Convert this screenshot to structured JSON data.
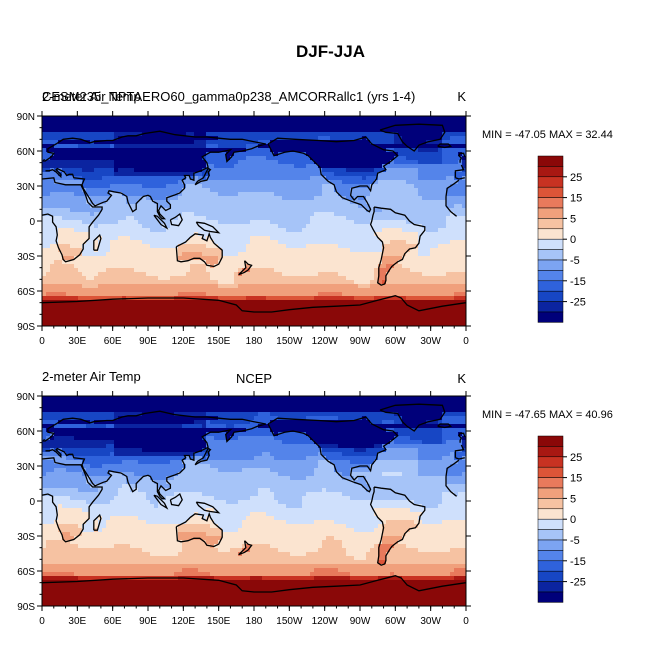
{
  "figure_title": "DJF-JJA",
  "colors": {
    "levels": [
      "#00007a",
      "#0b24a0",
      "#1746c4",
      "#2f62dc",
      "#5484ea",
      "#7ca4f2",
      "#a6c4f8",
      "#cfe0fc",
      "#fbe4d0",
      "#f6c2a2",
      "#f0a07c",
      "#e87a5c",
      "#dc5538",
      "#c83222",
      "#a81812",
      "#8a0808"
    ]
  },
  "chart_data": [
    {
      "type": "heatmap",
      "title_left": "CESM235_NPTAERO60_gamma0p238_AMCORRallc1 (yrs 1-4)",
      "title_left_overprint": "2-meter Air Temp",
      "title_right": "K",
      "min_max": "MIN = -47.05 MAX =  32.44",
      "min": -47.05,
      "max": 32.44,
      "x_ticks": [
        "0",
        "30E",
        "60E",
        "90E",
        "120E",
        "150E",
        "180",
        "150W",
        "120W",
        "90W",
        "60W",
        "30W",
        "0"
      ],
      "y_ticks": [
        "90N",
        "60N",
        "30N",
        "0",
        "30S",
        "60S",
        "90S"
      ],
      "colorbar_labels": [
        "25",
        "15",
        "5",
        "0",
        "-5",
        "-15",
        "-25"
      ],
      "xlim": [
        0,
        360
      ],
      "ylim": [
        -90,
        90
      ]
    },
    {
      "type": "heatmap",
      "title_left": "2-meter Air Temp",
      "title_center": "NCEP",
      "title_right": "K",
      "min_max": "MIN = -47.65 MAX =  40.96",
      "min": -47.65,
      "max": 40.96,
      "x_ticks": [
        "0",
        "30E",
        "60E",
        "90E",
        "120E",
        "150E",
        "180",
        "150W",
        "120W",
        "90W",
        "60W",
        "30W",
        "0"
      ],
      "y_ticks": [
        "90N",
        "60N",
        "30N",
        "0",
        "30S",
        "60S",
        "90S"
      ],
      "colorbar_labels": [
        "25",
        "15",
        "5",
        "0",
        "-5",
        "-15",
        "-25"
      ],
      "xlim": [
        0,
        360
      ],
      "ylim": [
        -90,
        90
      ]
    }
  ]
}
